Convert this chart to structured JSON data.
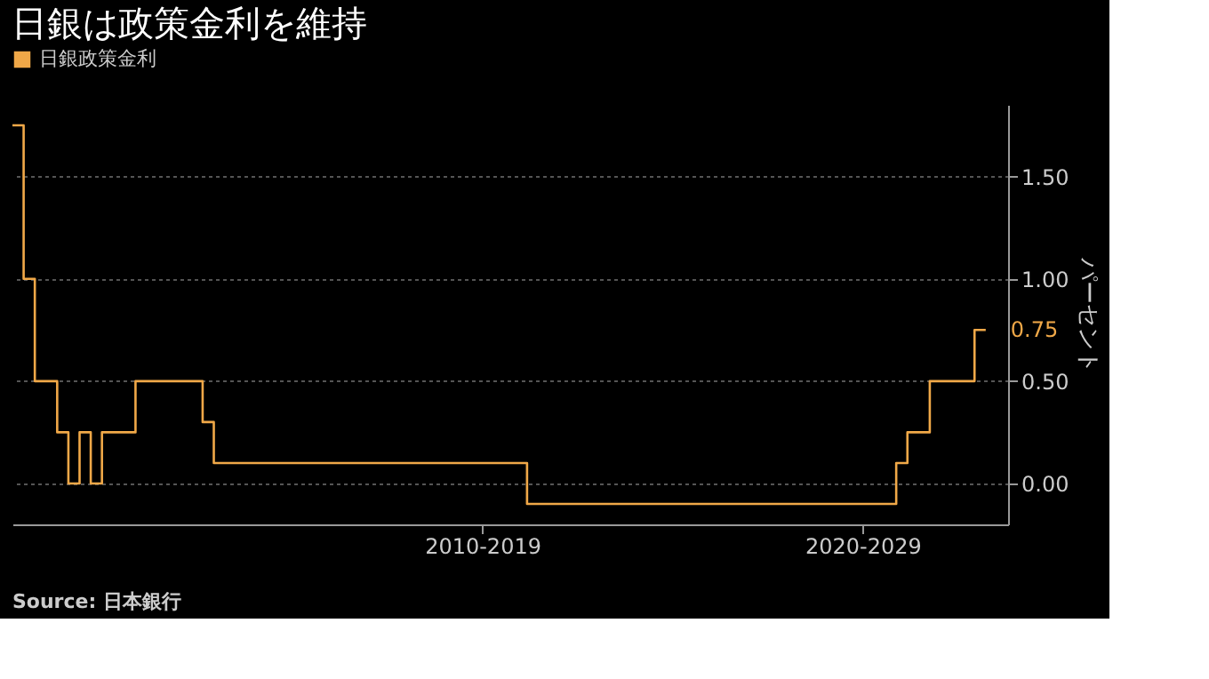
{
  "chart_data": {
    "type": "step",
    "title": "日銀は政策金利を維持",
    "ylabel": "パーセント",
    "annotations": [
      "Source: 日本銀行"
    ],
    "categories": [
      null,
      null,
      null,
      null,
      null,
      null,
      null,
      null,
      null,
      null,
      null,
      null,
      null,
      null,
      null,
      null,
      null,
      null,
      null,
      null,
      null,
      null,
      null,
      null,
      null,
      null,
      null,
      null,
      null,
      null,
      null,
      null,
      null,
      null,
      null,
      null,
      null,
      null,
      null,
      null,
      null,
      null,
      "2010-2019",
      null,
      null,
      null,
      null,
      null,
      null,
      null,
      null,
      null,
      null,
      null,
      null,
      null,
      null,
      null,
      null,
      null,
      null,
      null,
      null,
      null,
      null,
      null,
      null,
      null,
      null,
      null,
      null,
      null,
      null,
      null,
      null,
      null,
      "2020-2029",
      null,
      null,
      null,
      null,
      null,
      null,
      null,
      null,
      null,
      null,
      null,
      null,
      null
    ],
    "series": [
      {
        "name": "日銀政策金利",
        "color": "#f0a848",
        "values": [
          1.75,
          1.0,
          0.5,
          0.5,
          0.25,
          0,
          0.25,
          0,
          0.25,
          0.25,
          0.25,
          0.5,
          0.5,
          0.5,
          0.5,
          0.5,
          0.5,
          0.3,
          0.1,
          0.1,
          0.1,
          0.1,
          0.1,
          0.1,
          0.1,
          0.1,
          0.1,
          0.1,
          0.1,
          0.1,
          0.1,
          0.1,
          0.1,
          0.1,
          0.1,
          0.1,
          0.1,
          0.1,
          0.1,
          0.1,
          0.1,
          0.1,
          0.1,
          0.1,
          0.1,
          0.1,
          -0.1,
          -0.1,
          -0.1,
          -0.1,
          -0.1,
          -0.1,
          -0.1,
          -0.1,
          -0.1,
          -0.1,
          -0.1,
          -0.1,
          -0.1,
          -0.1,
          -0.1,
          -0.1,
          -0.1,
          -0.1,
          -0.1,
          -0.1,
          -0.1,
          -0.1,
          -0.1,
          -0.1,
          -0.1,
          -0.1,
          -0.1,
          -0.1,
          -0.1,
          -0.1,
          -0.1,
          -0.1,
          -0.1,
          0.1,
          0.25,
          0.25,
          0.5,
          0.5,
          0.5,
          0.5,
          0.75,
          0.75,
          null,
          null
        ],
        "value_labels": [
          null,
          null,
          null,
          null,
          null,
          null,
          null,
          null,
          null,
          null,
          null,
          null,
          null,
          null,
          null,
          null,
          null,
          null,
          null,
          null,
          null,
          null,
          null,
          null,
          null,
          null,
          null,
          null,
          null,
          null,
          null,
          null,
          null,
          null,
          null,
          null,
          null,
          null,
          null,
          null,
          null,
          null,
          null,
          null,
          null,
          null,
          null,
          null,
          null,
          null,
          null,
          null,
          null,
          null,
          null,
          null,
          null,
          null,
          null,
          null,
          null,
          null,
          null,
          null,
          null,
          null,
          null,
          null,
          null,
          null,
          null,
          null,
          null,
          null,
          null,
          null,
          null,
          null,
          null,
          null,
          null,
          null,
          null,
          null,
          null,
          null,
          null,
          "0.75",
          null,
          null
        ]
      }
    ],
    "ylim": [
      -0.2,
      1.85
    ],
    "yticks": [
      {
        "value": 0,
        "label": "0.00"
      },
      {
        "value": 0.5,
        "label": "0.50"
      },
      {
        "value": 1.0,
        "label": "1.00"
      },
      {
        "value": 1.5,
        "label": "1.50"
      }
    ],
    "grid": "y",
    "legend": "top"
  }
}
